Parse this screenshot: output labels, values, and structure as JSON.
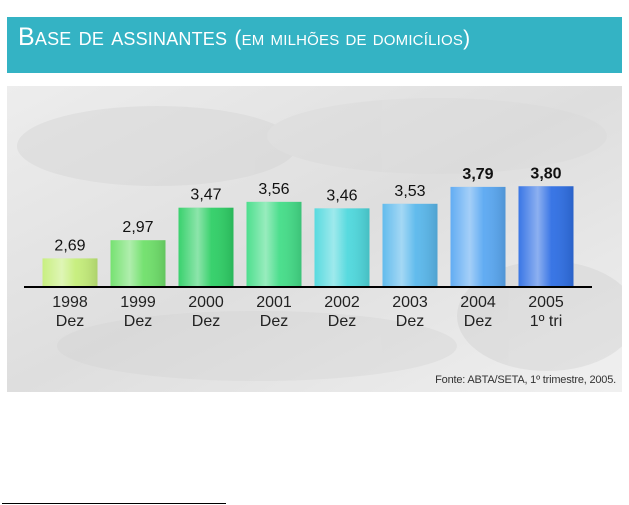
{
  "header": {
    "title": "Base de assinantes",
    "subtitle": "(em milhões de domicílios)"
  },
  "source": "Fonte: ABTA/SETA, 1º trimestre, 2005.",
  "colors": {
    "header_bg": "#34b3c4",
    "panel_bg": "#e9e9e9",
    "axis_line": "#000000"
  },
  "chart_data": {
    "type": "bar",
    "categories": [
      {
        "year": "1998",
        "period": "Dez"
      },
      {
        "year": "1999",
        "period": "Dez"
      },
      {
        "year": "2000",
        "period": "Dez"
      },
      {
        "year": "2001",
        "period": "Dez"
      },
      {
        "year": "2002",
        "period": "Dez"
      },
      {
        "year": "2003",
        "period": "Dez"
      },
      {
        "year": "2004",
        "period": "Dez"
      },
      {
        "year": "2005",
        "period": "1º tri"
      }
    ],
    "values": [
      2.69,
      2.97,
      3.47,
      3.56,
      3.46,
      3.53,
      3.79,
      3.8
    ],
    "value_labels": [
      "2,69",
      "2,97",
      "3,47",
      "3,56",
      "3,46",
      "3,53",
      "3,79",
      "3,80"
    ],
    "bold_labels": [
      false,
      false,
      false,
      false,
      false,
      false,
      true,
      true
    ],
    "bar_colors": [
      "#c5ee7a",
      "#6fe06a",
      "#2fcf66",
      "#44dd88",
      "#4fd8dd",
      "#5ab8ec",
      "#5aa8f2",
      "#2f6fe4"
    ],
    "title": "Base de assinantes",
    "xlabel": "",
    "ylabel": "",
    "legend": false,
    "grid": false
  }
}
